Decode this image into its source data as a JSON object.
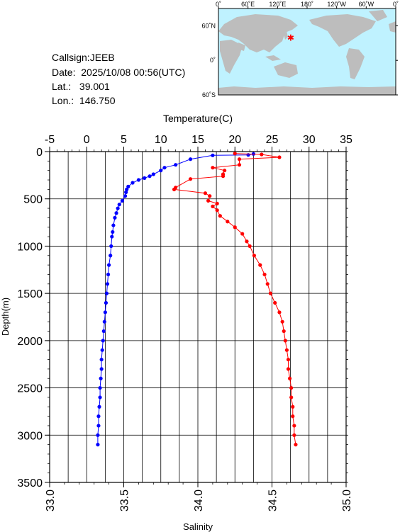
{
  "station": {
    "callsign": "Callsign:JEEB",
    "date": "Date:  2025/10/08 00:56(UTC)",
    "lat": "Lat.:   39.001",
    "lon": "Lon.:  146.750"
  },
  "map": {
    "lon_ticks": [
      "0˚",
      "60˚E",
      "120˚E",
      "180˚",
      "120˚W",
      "60˚W",
      "0˚"
    ],
    "lat_ticks": [
      "60˚N",
      "0˚",
      "60˚S"
    ],
    "station_lon": 146.75,
    "station_lat": 39.001,
    "colors": {
      "ocean": "#bff2ff",
      "land": "#bdbdbd",
      "marker": "#ff0000"
    }
  },
  "chart_data": {
    "type": "line",
    "title": "",
    "ylabel": "Depth(m)",
    "ylim": [
      3500,
      0
    ],
    "y_ticks": [
      "0",
      "500",
      "1000",
      "1500",
      "2000",
      "2500",
      "3000",
      "3500"
    ],
    "y_tick_values": [
      0,
      500,
      1000,
      1500,
      2000,
      2500,
      3000,
      3500
    ],
    "grid": true,
    "x_axes": [
      {
        "position": "top",
        "label": "Temperature(C)",
        "range": [
          -5,
          35
        ],
        "ticks": [
          "-5",
          "0",
          "5",
          "10",
          "15",
          "20",
          "25",
          "30",
          "35"
        ],
        "tick_values": [
          -5,
          0,
          5,
          10,
          15,
          20,
          25,
          30,
          35
        ]
      },
      {
        "position": "bottom",
        "label": "Salinity",
        "range": [
          33.0,
          35.0
        ],
        "ticks": [
          "33.0",
          "33.5",
          "34.0",
          "34.5",
          "35.0"
        ],
        "tick_values": [
          33.0,
          33.5,
          34.0,
          34.5,
          35.0
        ]
      }
    ],
    "series": [
      {
        "name": "",
        "axis": "top",
        "color": "#0000ff",
        "points": [
          [
            22.5,
            25
          ],
          [
            21.8,
            35
          ],
          [
            17.0,
            40
          ],
          [
            14.0,
            80
          ],
          [
            12.0,
            140
          ],
          [
            10.5,
            170
          ],
          [
            10.0,
            200
          ],
          [
            9.0,
            240
          ],
          [
            8.5,
            260
          ],
          [
            7.8,
            280
          ],
          [
            7.0,
            300
          ],
          [
            6.2,
            330
          ],
          [
            5.6,
            370
          ],
          [
            5.4,
            400
          ],
          [
            5.3,
            430
          ],
          [
            5.2,
            470
          ],
          [
            4.8,
            520
          ],
          [
            4.4,
            560
          ],
          [
            4.2,
            600
          ],
          [
            4.0,
            650
          ],
          [
            3.8,
            700
          ],
          [
            3.6,
            780
          ],
          [
            3.5,
            850
          ],
          [
            3.4,
            900
          ],
          [
            3.3,
            1000
          ],
          [
            3.2,
            1100
          ],
          [
            3.0,
            1200
          ],
          [
            2.9,
            1300
          ],
          [
            2.8,
            1400
          ],
          [
            2.7,
            1500
          ],
          [
            2.6,
            1600
          ],
          [
            2.5,
            1700
          ],
          [
            2.4,
            1800
          ],
          [
            2.3,
            1900
          ],
          [
            2.2,
            2000
          ],
          [
            2.1,
            2100
          ],
          [
            2.0,
            2200
          ],
          [
            2.0,
            2300
          ],
          [
            1.9,
            2400
          ],
          [
            1.8,
            2500
          ],
          [
            1.8,
            2600
          ],
          [
            1.7,
            2700
          ],
          [
            1.6,
            2800
          ],
          [
            1.6,
            2900
          ],
          [
            1.5,
            3000
          ],
          [
            1.5,
            3100
          ]
        ]
      },
      {
        "name": "",
        "axis": "bottom",
        "color": "#ff0000",
        "points": [
          [
            34.25,
            20
          ],
          [
            34.43,
            30
          ],
          [
            34.55,
            60
          ],
          [
            34.28,
            80
          ],
          [
            34.28,
            140
          ],
          [
            34.1,
            170
          ],
          [
            34.18,
            200
          ],
          [
            34.17,
            240
          ],
          [
            34.17,
            260
          ],
          [
            33.95,
            290
          ],
          [
            33.85,
            380
          ],
          [
            33.84,
            400
          ],
          [
            34.05,
            440
          ],
          [
            34.08,
            470
          ],
          [
            34.07,
            520
          ],
          [
            34.13,
            550
          ],
          [
            34.1,
            580
          ],
          [
            34.13,
            620
          ],
          [
            34.15,
            680
          ],
          [
            34.2,
            740
          ],
          [
            34.25,
            800
          ],
          [
            34.3,
            870
          ],
          [
            34.33,
            950
          ],
          [
            34.35,
            1000
          ],
          [
            34.38,
            1100
          ],
          [
            34.42,
            1200
          ],
          [
            34.45,
            1300
          ],
          [
            34.47,
            1400
          ],
          [
            34.49,
            1500
          ],
          [
            34.52,
            1600
          ],
          [
            34.55,
            1700
          ],
          [
            34.57,
            1800
          ],
          [
            34.58,
            1900
          ],
          [
            34.59,
            2000
          ],
          [
            34.6,
            2100
          ],
          [
            34.61,
            2200
          ],
          [
            34.61,
            2300
          ],
          [
            34.62,
            2400
          ],
          [
            34.63,
            2500
          ],
          [
            34.63,
            2600
          ],
          [
            34.64,
            2700
          ],
          [
            34.64,
            2800
          ],
          [
            34.65,
            2900
          ],
          [
            34.65,
            3000
          ],
          [
            34.66,
            3100
          ]
        ]
      }
    ]
  }
}
